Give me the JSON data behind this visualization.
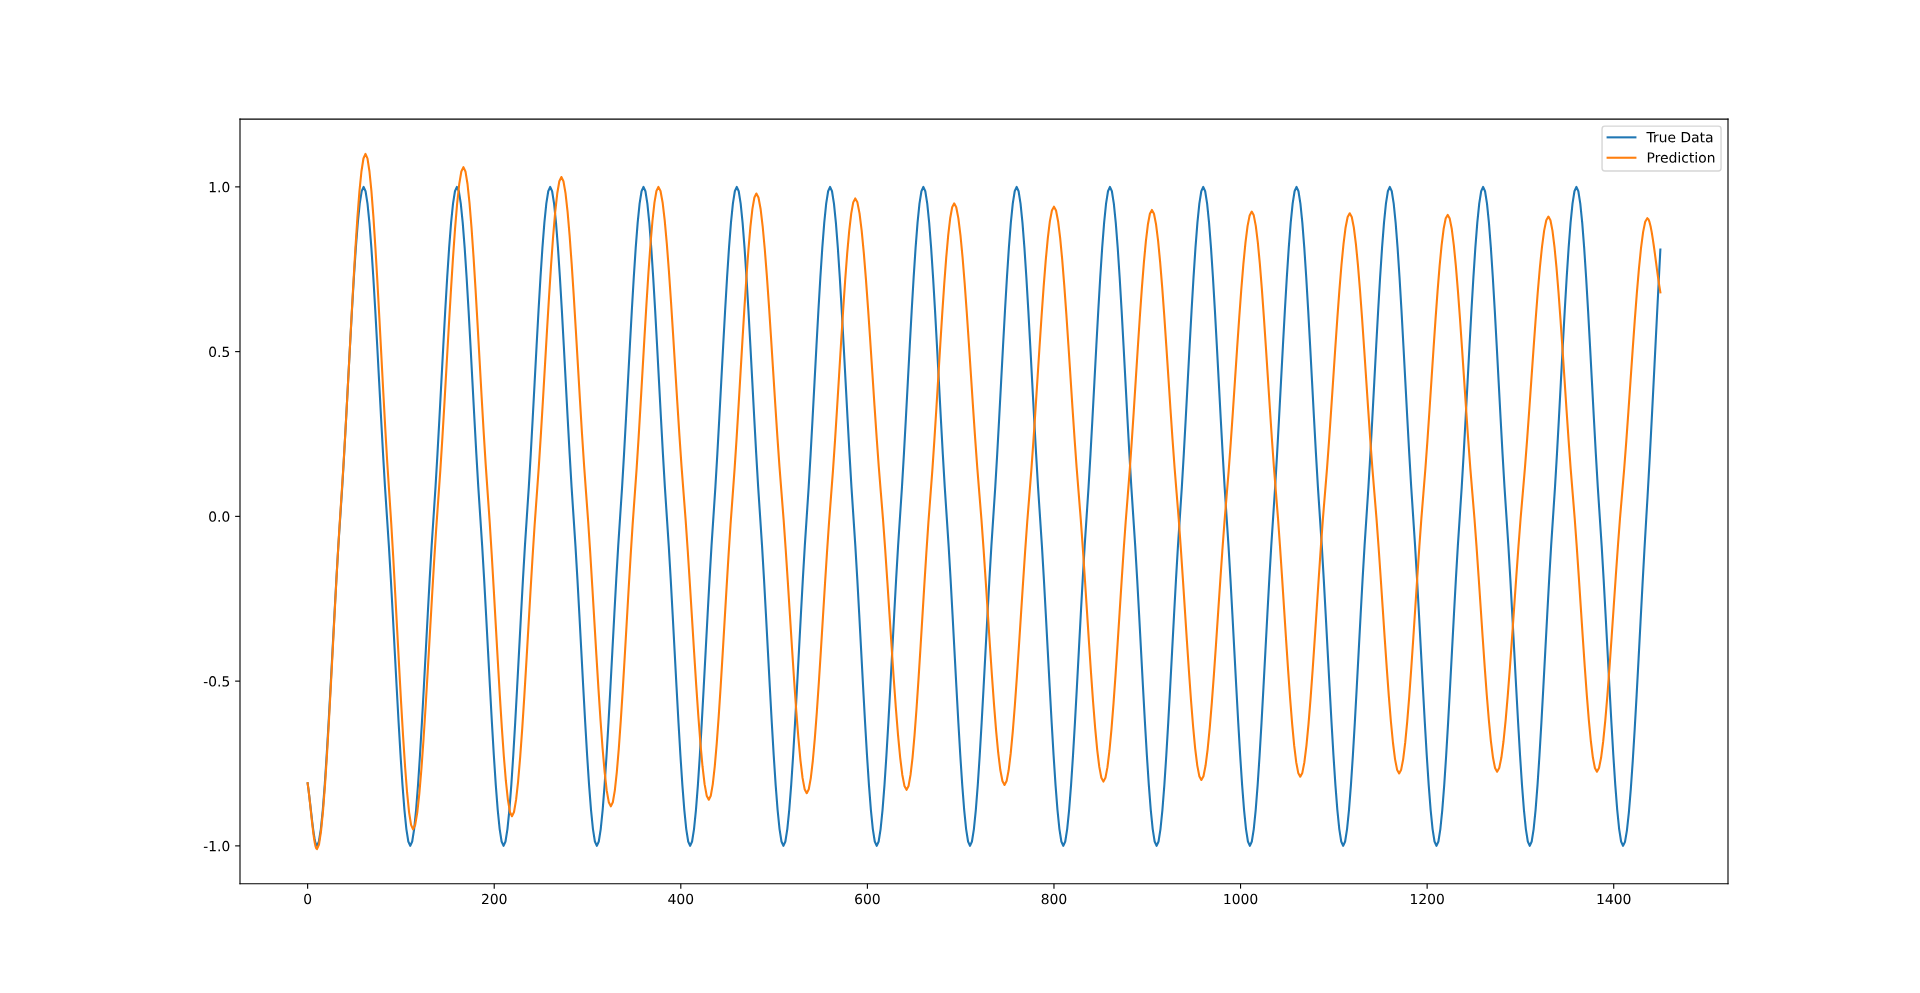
{
  "chart_data": {
    "type": "line",
    "xlim": [
      -72.5,
      1522.5
    ],
    "ylim": [
      -1.115,
      1.2055
    ],
    "xticks": [
      0,
      200,
      400,
      600,
      800,
      1000,
      1200,
      1400
    ],
    "yticks": [
      {
        "value": -1.0,
        "label": "-1.0"
      },
      {
        "value": -0.5,
        "label": "-0.5"
      },
      {
        "value": 0.0,
        "label": "0.0"
      },
      {
        "value": 0.5,
        "label": "0.5"
      },
      {
        "value": 1.0,
        "label": "1.0"
      }
    ],
    "grid": false,
    "legend": "top right",
    "marker": "none",
    "line_style": "solid",
    "series": [
      {
        "name": "True Data",
        "color": "#1f77b4",
        "x": [
          0,
          10,
          35,
          60,
          85,
          110,
          135,
          160,
          185,
          210,
          235,
          260,
          285,
          310,
          335,
          360,
          385,
          410,
          435,
          460,
          485,
          510,
          535,
          560,
          585,
          610,
          635,
          660,
          685,
          710,
          735,
          760,
          785,
          810,
          835,
          860,
          885,
          910,
          935,
          960,
          985,
          1010,
          1035,
          1060,
          1085,
          1110,
          1135,
          1160,
          1185,
          1210,
          1235,
          1260,
          1285,
          1310,
          1335,
          1360,
          1385,
          1410,
          1435,
          1450
        ],
        "values": [
          -0.81,
          -1,
          0,
          1,
          0,
          -1,
          0,
          1,
          0,
          -1,
          0,
          1,
          0,
          -1,
          0,
          1,
          0,
          -1,
          0,
          1,
          0,
          -1,
          0,
          1,
          0,
          -1,
          0,
          1,
          0,
          -1,
          0,
          1,
          0,
          -1,
          0,
          1,
          0,
          -1,
          0,
          1,
          0,
          -1,
          0,
          1,
          0,
          -1,
          0,
          1,
          0,
          -1,
          0,
          1,
          0,
          -1,
          0,
          1,
          0,
          -1,
          0,
          0.81
        ]
      },
      {
        "name": "Prediction",
        "color": "#ff7f0e",
        "x": [
          0,
          10,
          36,
          62,
          87.5,
          113,
          140,
          167,
          193,
          219,
          245.5,
          272,
          298.5,
          325,
          350.5,
          376,
          403,
          430,
          455.5,
          481,
          508,
          535,
          561,
          587,
          614.5,
          642,
          667.5,
          693,
          720,
          747,
          773.5,
          800,
          826.5,
          853,
          879,
          905,
          931.5,
          958,
          985,
          1012,
          1038,
          1064,
          1090.5,
          1117,
          1143.5,
          1170,
          1196,
          1222,
          1248.5,
          1275,
          1302.5,
          1330,
          1356,
          1382,
          1409,
          1436,
          1450
        ],
        "values": [
          -0.81,
          -1.01,
          0.05,
          1.1,
          0.07,
          -0.95,
          0.05,
          1.06,
          0.07,
          -0.91,
          0.06,
          1.03,
          0.07,
          -0.88,
          0.06,
          1.0,
          0.07,
          -0.86,
          0.06,
          0.98,
          0.07,
          -0.84,
          0.06,
          0.965,
          0.07,
          -0.83,
          0.06,
          0.95,
          0.07,
          -0.815,
          0.06,
          0.94,
          0.07,
          -0.805,
          0.06,
          0.93,
          0.07,
          -0.8,
          0.06,
          0.925,
          0.07,
          -0.79,
          0.07,
          0.92,
          0.07,
          -0.78,
          0.07,
          0.915,
          0.07,
          -0.775,
          0.07,
          0.91,
          0.07,
          -0.775,
          0.07,
          0.905,
          0.68
        ]
      }
    ]
  }
}
